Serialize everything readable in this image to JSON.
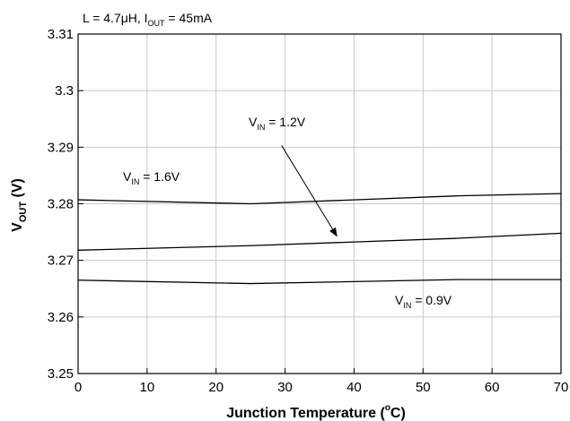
{
  "chart_data": {
    "type": "line",
    "title": "",
    "conditions": {
      "prefix": "L = 4.7",
      "mu": "μ",
      "unit": "H,  I",
      "sub": "OUT",
      "suffix": " = 45mA"
    },
    "xlabel": {
      "main": "Junction Temperature (",
      "sup": "o",
      "end": "C)"
    },
    "ylabel": {
      "main": "V",
      "sub": "OUT",
      "end": " (V)"
    },
    "xlim": [
      0,
      70
    ],
    "ylim": [
      3.25,
      3.31
    ],
    "xticks": [
      0,
      10,
      20,
      30,
      40,
      50,
      60,
      70
    ],
    "yticks": [
      "3.25",
      "3.26",
      "3.27",
      "3.28",
      "3.29",
      "3.3",
      "3.31"
    ],
    "grid": true,
    "series": [
      {
        "name": "VIN = 1.6V",
        "x": [
          0,
          25,
          55,
          70
        ],
        "y": [
          3.2807,
          3.28,
          3.2814,
          3.2818
        ]
      },
      {
        "name": "VIN = 1.2V",
        "x": [
          0,
          25,
          55,
          70
        ],
        "y": [
          3.2718,
          3.2726,
          3.2739,
          3.2748
        ]
      },
      {
        "name": "VIN = 0.9V",
        "x": [
          0,
          25,
          55,
          70
        ],
        "y": [
          3.2665,
          3.2659,
          3.2666,
          3.2666
        ]
      }
    ],
    "annotations": [
      {
        "main": "V",
        "sub": "IN",
        "end": " = 1.6V",
        "series": 0
      },
      {
        "main": "V",
        "sub": "IN",
        "end": " = 1.2V",
        "series": 1
      },
      {
        "main": "V",
        "sub": "IN",
        "end": " = 0.9V",
        "series": 2
      }
    ],
    "arrow": {
      "from": [
        29.5,
        3.2903
      ],
      "to": [
        37.5,
        3.2743
      ]
    },
    "line_color": "#000000",
    "grid_color": "#c8c8c8"
  }
}
